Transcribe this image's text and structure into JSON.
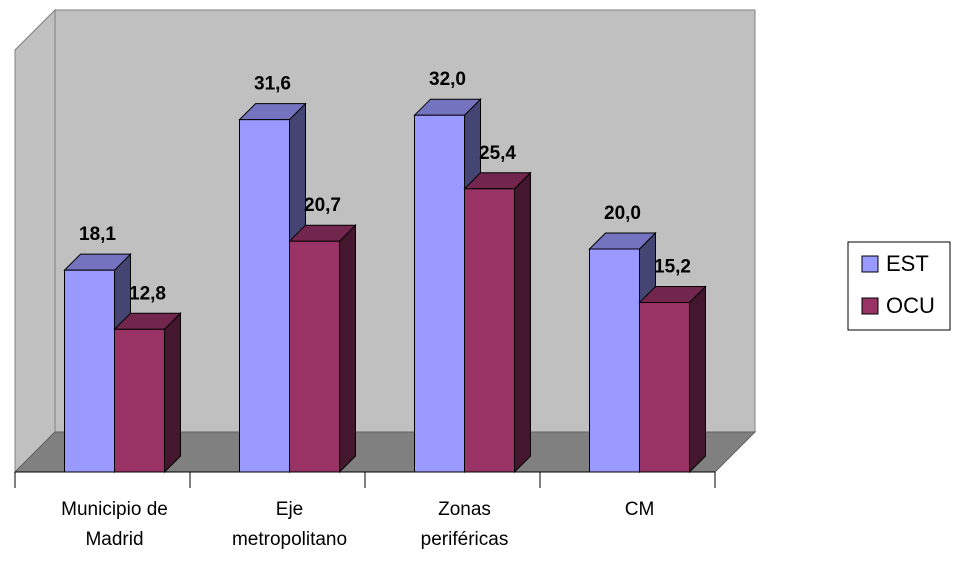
{
  "chart_data": {
    "type": "bar",
    "title": "",
    "xlabel": "",
    "ylabel": "",
    "categories": [
      [
        "Municipio de",
        "Madrid"
      ],
      [
        "Eje",
        "metropolitano"
      ],
      [
        "Zonas",
        "periféricas"
      ],
      [
        "CM"
      ]
    ],
    "series": [
      {
        "name": "EST",
        "values": [
          18.1,
          31.6,
          32.0,
          20.0
        ],
        "labels": [
          "18,1",
          "31,6",
          "32,0",
          "20,0"
        ],
        "color": "#9999ff"
      },
      {
        "name": "OCU",
        "values": [
          12.8,
          20.7,
          25.4,
          15.2
        ],
        "labels": [
          "12,8",
          "20,7",
          "25,4",
          "15,2"
        ],
        "color": "#993366"
      }
    ],
    "ylim": [
      0,
      35
    ],
    "grid": false,
    "legend": "right",
    "wall_color": "#c0c0c0",
    "floor_color": "#808080"
  }
}
